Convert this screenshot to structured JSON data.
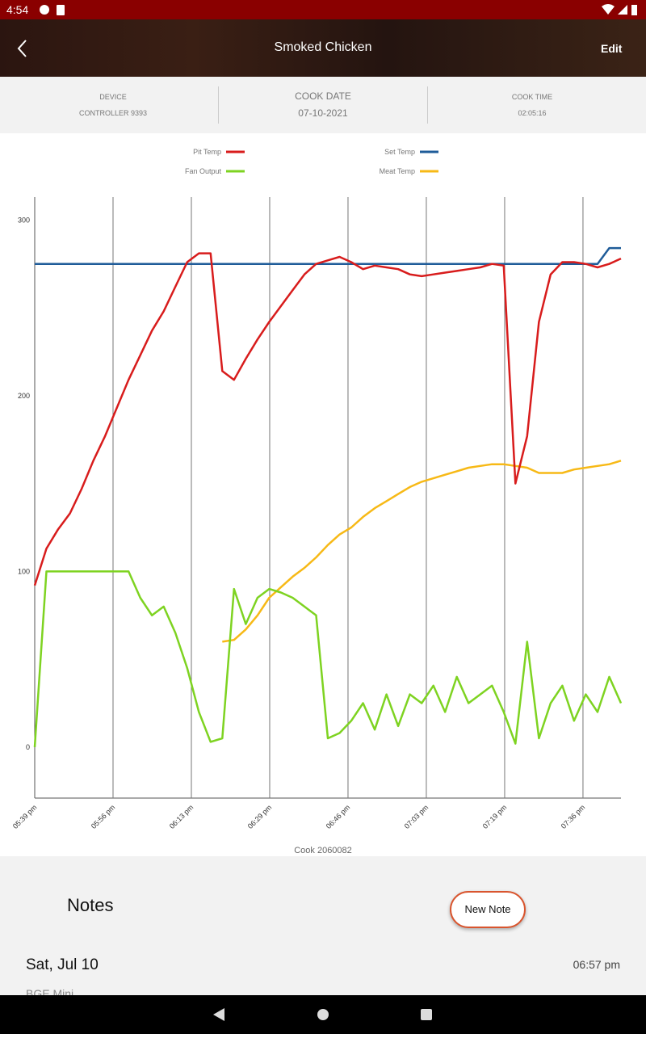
{
  "status_bar": {
    "time": "4:54"
  },
  "header": {
    "title": "Smoked Chicken",
    "action": "Edit"
  },
  "info": [
    {
      "label": "DEVICE",
      "value": "CONTROLLER 9393"
    },
    {
      "label": "COOK DATE",
      "value": "07-10-2021"
    },
    {
      "label": "COOK TIME",
      "value": "02:05:16"
    }
  ],
  "chart_data": {
    "type": "line",
    "x_label": "Cook 2060082",
    "x": [
      0,
      2.5,
      5,
      7.5,
      10,
      12.5,
      15,
      17.5,
      20,
      22.5,
      25,
      27.5,
      30,
      32.5,
      35,
      37.5,
      40,
      42.5,
      45,
      47.5,
      50,
      52.5,
      55,
      57.5,
      60,
      62.5,
      65,
      67.5,
      70,
      72.5,
      75,
      77.5,
      80,
      82.5,
      85,
      87.5,
      90,
      92.5,
      95,
      97.5,
      100,
      102.5,
      105,
      107.5,
      110,
      112.5,
      115,
      117.5,
      120,
      122.5,
      125
    ],
    "xlim": [
      0,
      125
    ],
    "xticks": [
      {
        "value": 0,
        "label": "05:39 pm"
      },
      {
        "value": 16.7,
        "label": "05:56 pm"
      },
      {
        "value": 33.4,
        "label": "06:13 pm"
      },
      {
        "value": 50.1,
        "label": "06:29 pm"
      },
      {
        "value": 66.8,
        "label": "06:46 pm"
      },
      {
        "value": 83.5,
        "label": "07:03 pm"
      },
      {
        "value": 100.2,
        "label": "07:19 pm"
      },
      {
        "value": 116.9,
        "label": "07:36 pm"
      }
    ],
    "ylim": [
      -29,
      313
    ],
    "yticks": [
      0,
      100,
      200,
      300
    ],
    "x_grid": true,
    "series": [
      {
        "name": "Pit Temp",
        "color": "#d81c1c",
        "values": [
          92,
          113,
          124,
          133,
          147,
          163,
          177,
          193,
          209,
          223,
          237,
          248,
          262,
          276,
          281,
          281,
          214,
          209,
          221,
          232,
          242,
          251,
          260,
          269,
          275,
          277,
          279,
          276,
          272,
          274,
          273,
          272,
          269,
          268,
          269,
          270,
          271,
          272,
          273,
          275,
          274,
          150,
          177,
          242,
          269,
          276,
          276,
          275,
          273,
          275,
          278
        ]
      },
      {
        "name": "Set Temp",
        "color": "#1f5c99",
        "values": [
          275,
          275,
          275,
          275,
          275,
          275,
          275,
          275,
          275,
          275,
          275,
          275,
          275,
          275,
          275,
          275,
          275,
          275,
          275,
          275,
          275,
          275,
          275,
          275,
          275,
          275,
          275,
          275,
          275,
          275,
          275,
          275,
          275,
          275,
          275,
          275,
          275,
          275,
          275,
          275,
          275,
          275,
          275,
          275,
          275,
          275,
          275,
          275,
          275,
          284,
          284
        ]
      },
      {
        "name": "Fan Output",
        "color": "#7ed321",
        "values": [
          0,
          100,
          100,
          100,
          100,
          100,
          100,
          100,
          100,
          85,
          75,
          80,
          65,
          45,
          20,
          3,
          5,
          90,
          70,
          85,
          90,
          88,
          85,
          80,
          75,
          5,
          8,
          15,
          25,
          10,
          30,
          12,
          30,
          25,
          35,
          20,
          40,
          25,
          30,
          35,
          20,
          2,
          60,
          5,
          25,
          35,
          15,
          30,
          20,
          40,
          25
        ]
      },
      {
        "name": "Meat Temp",
        "color": "#f7b916",
        "values": [
          null,
          null,
          null,
          null,
          null,
          null,
          null,
          null,
          null,
          null,
          null,
          null,
          null,
          null,
          null,
          null,
          60,
          61,
          67,
          75,
          85,
          91,
          97,
          102,
          108,
          115,
          121,
          125,
          131,
          136,
          140,
          144,
          148,
          151,
          153,
          155,
          157,
          159,
          160,
          161,
          161,
          160,
          159,
          156,
          156,
          156,
          158,
          159,
          160,
          161,
          163
        ]
      }
    ]
  },
  "notes": {
    "title": "Notes",
    "button": "New Note",
    "entries": [
      {
        "date": "Sat, Jul 10",
        "time": "06:57 pm",
        "text": "BGE Mini"
      }
    ]
  }
}
